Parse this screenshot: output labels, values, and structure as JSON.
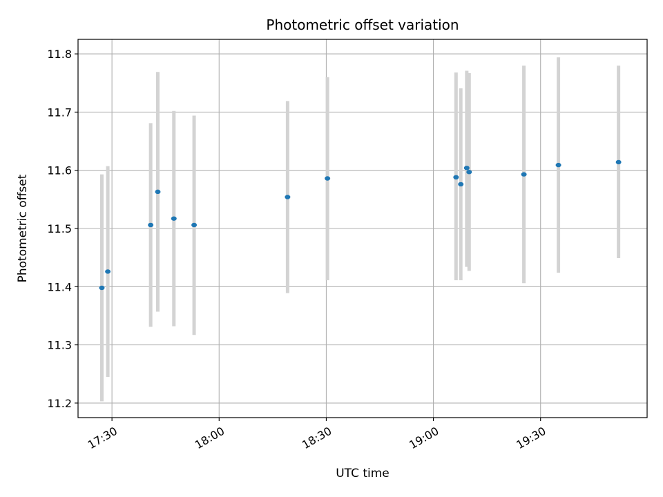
{
  "chart_data": {
    "type": "scatter",
    "title": "Photometric offset variation",
    "xlabel": "UTC time",
    "ylabel": "Photometric offset",
    "x_axis_type": "time",
    "xlim": [
      "17:20:30",
      "19:59:50"
    ],
    "ylim": [
      11.175,
      11.825
    ],
    "x_ticks": [
      "17:30",
      "18:00",
      "18:30",
      "19:00",
      "19:30"
    ],
    "y_ticks": [
      11.2,
      11.3,
      11.4,
      11.5,
      11.6,
      11.7,
      11.8
    ],
    "y_tick_labels": [
      "11.2",
      "11.3",
      "11.4",
      "11.5",
      "11.6",
      "11.7",
      "11.8"
    ],
    "grid": true,
    "marker_color": "#1f77b4",
    "errorbar_color": "#d3d3d3",
    "points": [
      {
        "t": "17:27:10",
        "y": 11.398,
        "err_low": 11.203,
        "err_high": 11.593
      },
      {
        "t": "17:28:50",
        "y": 11.426,
        "err_low": 11.245,
        "err_high": 11.607
      },
      {
        "t": "17:40:50",
        "y": 11.506,
        "err_low": 11.331,
        "err_high": 11.681
      },
      {
        "t": "17:42:50",
        "y": 11.563,
        "err_low": 11.357,
        "err_high": 11.769
      },
      {
        "t": "17:47:20",
        "y": 11.517,
        "err_low": 11.332,
        "err_high": 11.702
      },
      {
        "t": "17:53:00",
        "y": 11.506,
        "err_low": 11.317,
        "err_high": 11.694
      },
      {
        "t": "18:19:10",
        "y": 11.554,
        "err_low": 11.389,
        "err_high": 11.719
      },
      {
        "t": "18:30:20",
        "y": 11.586,
        "err_low": 11.411,
        "err_high": 11.76
      },
      {
        "t": "19:06:20",
        "y": 11.588,
        "err_low": 11.411,
        "err_high": 11.768
      },
      {
        "t": "19:07:40",
        "y": 11.576,
        "err_low": 11.411,
        "err_high": 11.741
      },
      {
        "t": "19:09:20",
        "y": 11.604,
        "err_low": 11.434,
        "err_high": 11.771
      },
      {
        "t": "19:10:00",
        "y": 11.597,
        "err_low": 11.427,
        "err_high": 11.767
      },
      {
        "t": "19:25:20",
        "y": 11.593,
        "err_low": 11.406,
        "err_high": 11.78
      },
      {
        "t": "19:35:00",
        "y": 11.609,
        "err_low": 11.424,
        "err_high": 11.794
      },
      {
        "t": "19:51:50",
        "y": 11.614,
        "err_low": 11.449,
        "err_high": 11.78
      }
    ]
  }
}
